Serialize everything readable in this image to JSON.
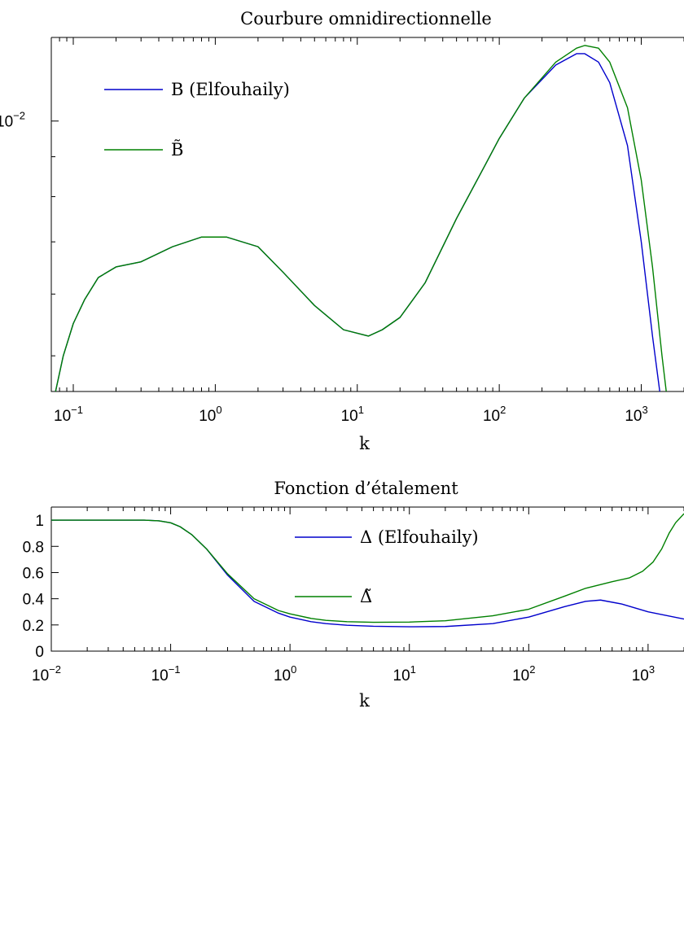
{
  "chart_data": [
    {
      "type": "line",
      "title": "Courbure omnidirectionnelle",
      "xlabel": "k",
      "ylabel": "",
      "xscale": "log",
      "yscale": "log",
      "xlim": [
        0.07,
        2000
      ],
      "ylim": [
        0.0045,
        0.0128
      ],
      "xticks": [
        {
          "value": 0.1,
          "label": "10",
          "exp": "−1"
        },
        {
          "value": 1,
          "label": "10",
          "exp": "0"
        },
        {
          "value": 10,
          "label": "10",
          "exp": "1"
        },
        {
          "value": 100,
          "label": "10",
          "exp": "2"
        },
        {
          "value": 1000,
          "label": "10",
          "exp": "3"
        }
      ],
      "yticks": [
        {
          "value": 0.01,
          "label": "10",
          "exp": "−2"
        }
      ],
      "legend": {
        "position": "top-left",
        "entries": [
          {
            "label": "B (Elfouhaily)",
            "color": "#0000cc"
          },
          {
            "label": "B̃",
            "color": "#008000"
          }
        ]
      },
      "series": [
        {
          "name": "B (Elfouhaily)",
          "color": "#0000cc",
          "x": [
            0.075,
            0.085,
            0.1,
            0.12,
            0.15,
            0.2,
            0.3,
            0.5,
            0.8,
            1.2,
            2,
            3,
            5,
            8,
            12,
            15,
            20,
            30,
            50,
            80,
            100,
            150,
            250,
            350,
            400,
            500,
            600,
            800,
            1000,
            1200,
            1350
          ],
          "y": [
            0.0045,
            0.005,
            0.0055,
            0.0059,
            0.0063,
            0.0065,
            0.0066,
            0.0069,
            0.0071,
            0.0071,
            0.0069,
            0.0064,
            0.0058,
            0.0054,
            0.0053,
            0.0054,
            0.0056,
            0.0062,
            0.0075,
            0.0088,
            0.0095,
            0.0107,
            0.0118,
            0.0122,
            0.0122,
            0.0119,
            0.0112,
            0.0093,
            0.007,
            0.0053,
            0.0045
          ]
        },
        {
          "name": "B̃",
          "color": "#008000",
          "x": [
            0.075,
            0.085,
            0.1,
            0.12,
            0.15,
            0.2,
            0.3,
            0.5,
            0.8,
            1.2,
            2,
            3,
            5,
            8,
            12,
            15,
            20,
            30,
            50,
            80,
            100,
            150,
            250,
            350,
            400,
            500,
            600,
            800,
            1000,
            1200,
            1400,
            1500
          ],
          "y": [
            0.0045,
            0.005,
            0.0055,
            0.0059,
            0.0063,
            0.0065,
            0.0066,
            0.0069,
            0.0071,
            0.0071,
            0.0069,
            0.0064,
            0.0058,
            0.0054,
            0.0053,
            0.0054,
            0.0056,
            0.0062,
            0.0075,
            0.0088,
            0.0095,
            0.0107,
            0.0119,
            0.0124,
            0.0125,
            0.0124,
            0.0119,
            0.0104,
            0.0084,
            0.0065,
            0.005,
            0.0045
          ]
        }
      ]
    },
    {
      "type": "line",
      "title": "Fonction d’étalement",
      "xlabel": "k",
      "ylabel": "",
      "xscale": "log",
      "yscale": "linear",
      "xlim": [
        0.01,
        2000
      ],
      "ylim": [
        0,
        1.1
      ],
      "xticks": [
        {
          "value": 0.01,
          "label": "10",
          "exp": "−2"
        },
        {
          "value": 0.1,
          "label": "10",
          "exp": "−1"
        },
        {
          "value": 1,
          "label": "10",
          "exp": "0"
        },
        {
          "value": 10,
          "label": "10",
          "exp": "1"
        },
        {
          "value": 100,
          "label": "10",
          "exp": "2"
        },
        {
          "value": 1000,
          "label": "10",
          "exp": "3"
        }
      ],
      "yticks": [
        {
          "value": 0,
          "label": "0"
        },
        {
          "value": 0.2,
          "label": "0.2"
        },
        {
          "value": 0.4,
          "label": "0.4"
        },
        {
          "value": 0.6,
          "label": "0.6"
        },
        {
          "value": 0.8,
          "label": "0.8"
        },
        {
          "value": 1,
          "label": "1"
        }
      ],
      "legend": {
        "position": "top-center",
        "entries": [
          {
            "label": "Δ (Elfouhaily)",
            "color": "#0000cc"
          },
          {
            "label": "Δ̃",
            "color": "#008000"
          }
        ]
      },
      "series": [
        {
          "name": "Δ (Elfouhaily)",
          "color": "#0000cc",
          "x": [
            0.01,
            0.03,
            0.06,
            0.08,
            0.1,
            0.12,
            0.15,
            0.2,
            0.3,
            0.5,
            0.8,
            1,
            1.5,
            2,
            3,
            5,
            10,
            20,
            50,
            100,
            200,
            300,
            400,
            600,
            1000,
            2000
          ],
          "y": [
            1.0,
            1.0,
            1.0,
            0.995,
            0.98,
            0.95,
            0.89,
            0.78,
            0.58,
            0.38,
            0.29,
            0.26,
            0.225,
            0.21,
            0.198,
            0.19,
            0.186,
            0.188,
            0.21,
            0.26,
            0.34,
            0.38,
            0.39,
            0.36,
            0.3,
            0.245
          ]
        },
        {
          "name": "Δ̃",
          "color": "#008000",
          "x": [
            0.01,
            0.03,
            0.06,
            0.08,
            0.1,
            0.12,
            0.15,
            0.2,
            0.3,
            0.5,
            0.8,
            1,
            1.5,
            2,
            3,
            5,
            10,
            20,
            50,
            100,
            200,
            300,
            500,
            700,
            900,
            1100,
            1300,
            1500,
            1700,
            2000
          ],
          "y": [
            1.0,
            1.0,
            1.0,
            0.995,
            0.98,
            0.95,
            0.89,
            0.78,
            0.59,
            0.4,
            0.31,
            0.285,
            0.25,
            0.235,
            0.225,
            0.22,
            0.222,
            0.232,
            0.27,
            0.32,
            0.42,
            0.48,
            0.53,
            0.56,
            0.61,
            0.68,
            0.78,
            0.9,
            0.98,
            1.05
          ]
        }
      ]
    }
  ]
}
